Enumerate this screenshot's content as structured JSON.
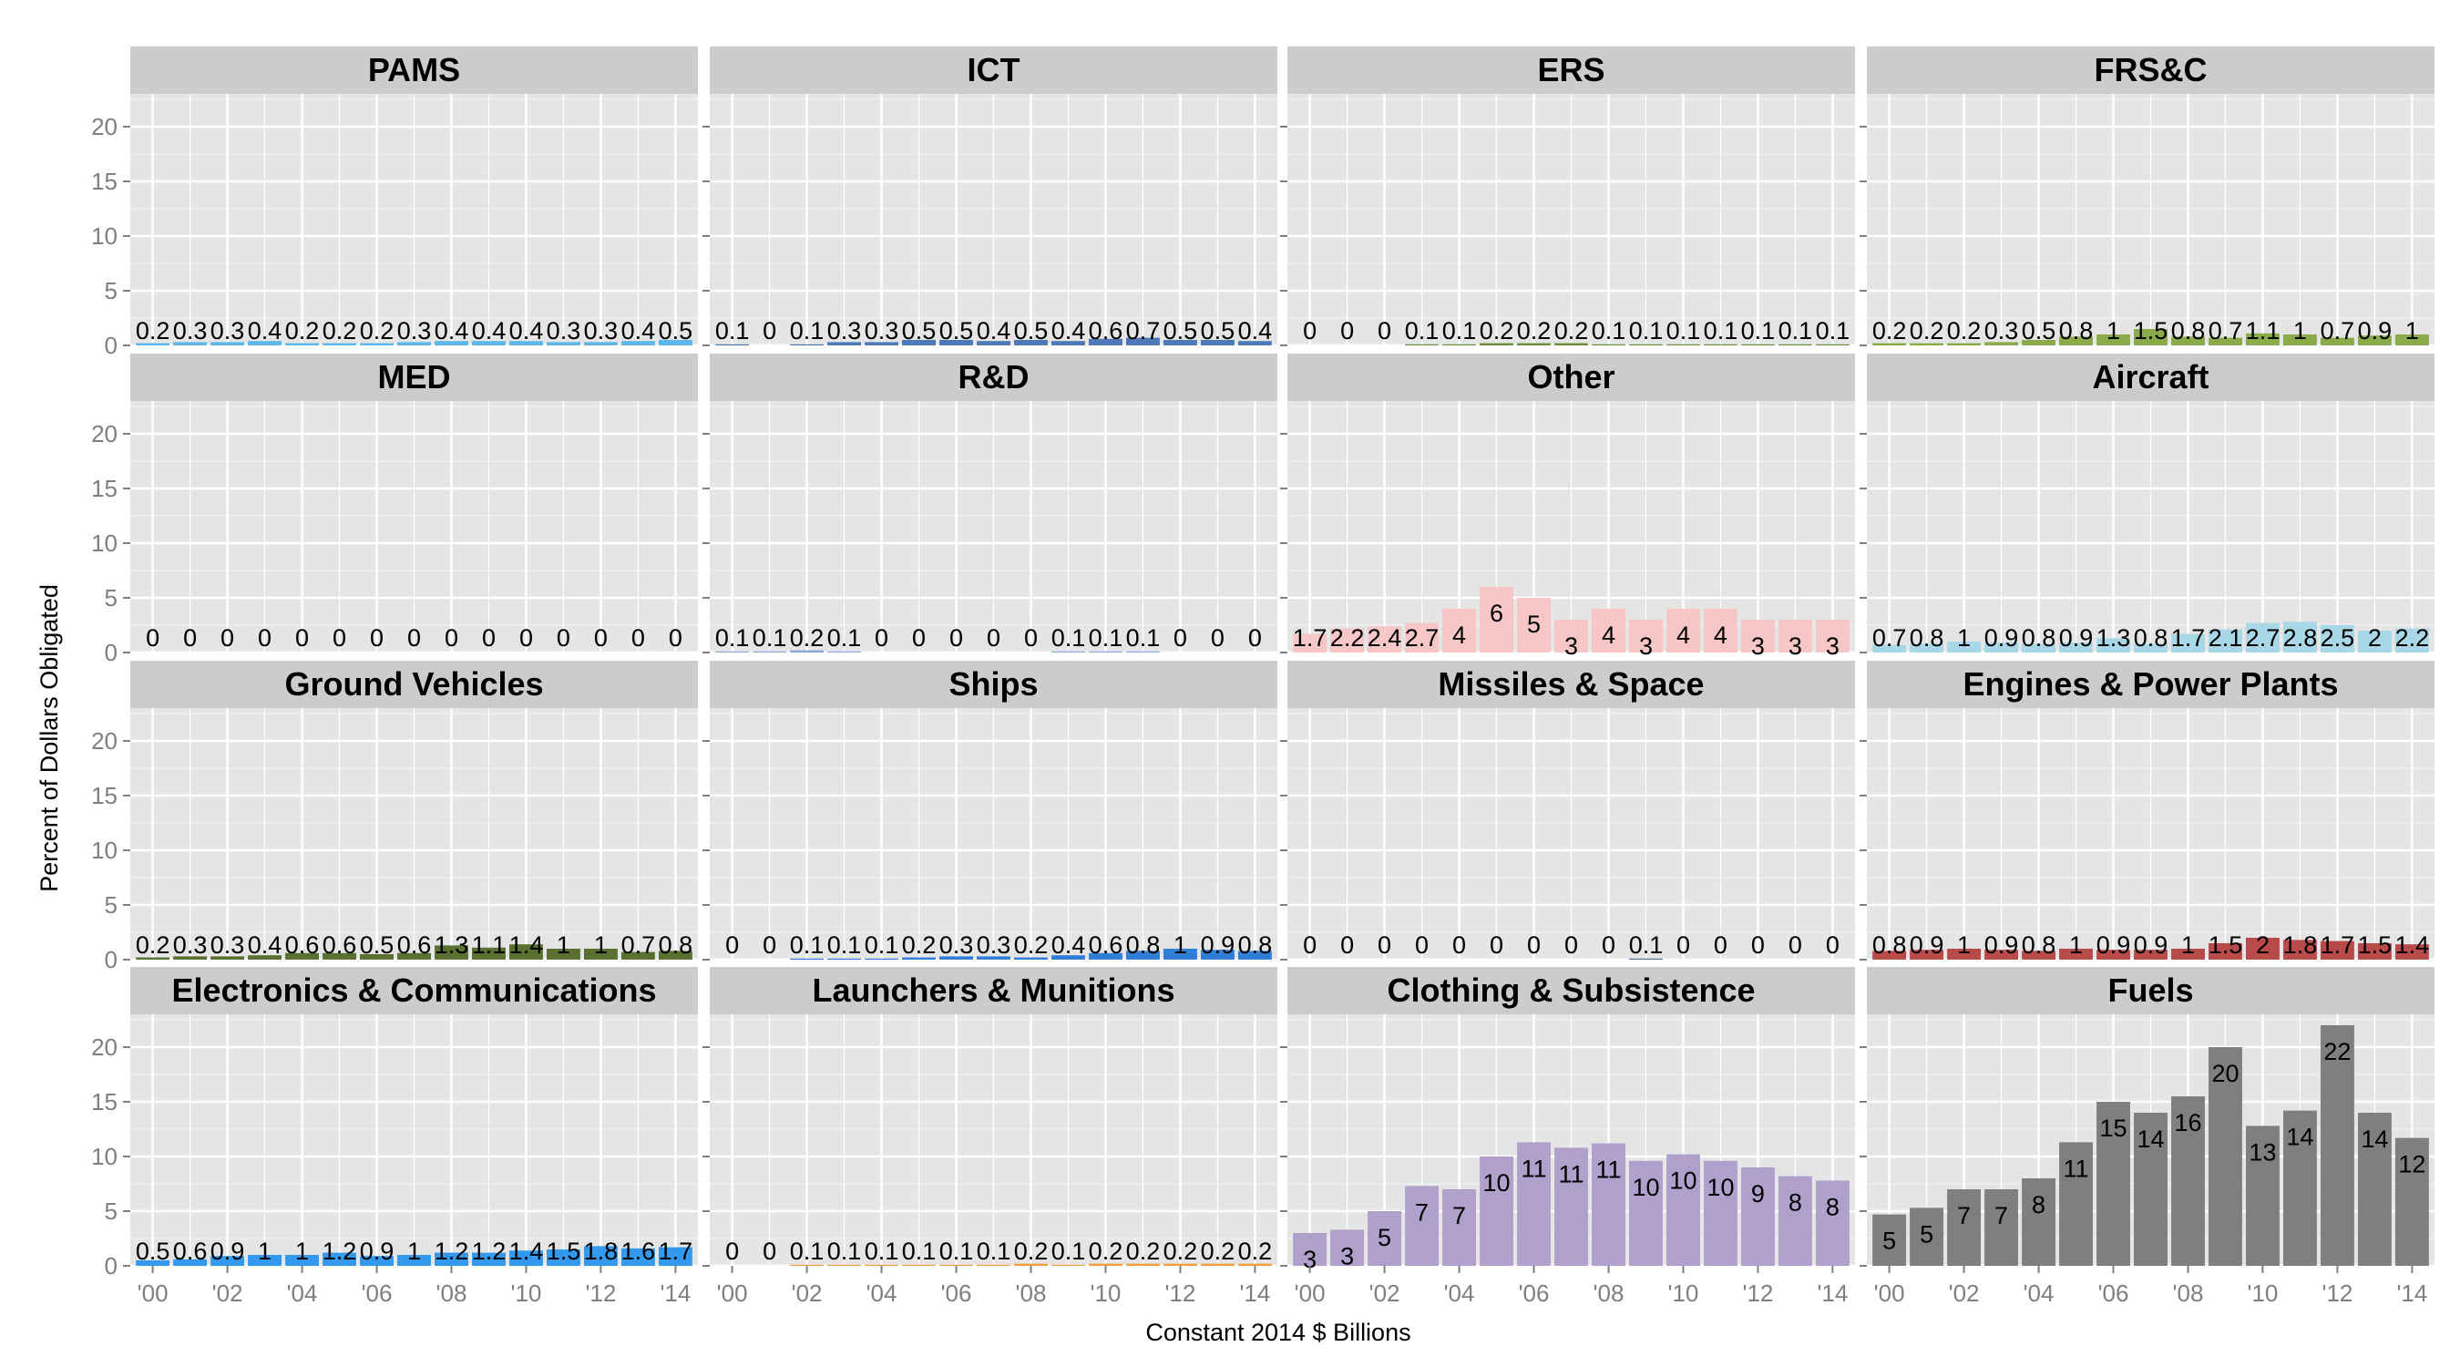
{
  "chart_data": {
    "type": "bar",
    "xlabel": "Constant 2014 $ Billions",
    "ylabel": "Percent of Dollars Obligated",
    "ylim": [
      0,
      23
    ],
    "yticks": [
      0,
      5,
      10,
      15,
      20
    ],
    "x": [
      "2000",
      "2001",
      "2002",
      "2003",
      "2004",
      "2005",
      "2006",
      "2007",
      "2008",
      "2009",
      "2010",
      "2011",
      "2012",
      "2013",
      "2014"
    ],
    "xtick_labels": [
      "'00",
      "'02",
      "'04",
      "'06",
      "'08",
      "'10",
      "'12",
      "'14"
    ],
    "grid": true,
    "legend": "none",
    "panels": [
      {
        "title": "PAMS",
        "color": "#5bb8e8",
        "values": [
          0.2,
          0.3,
          0.3,
          0.4,
          0.2,
          0.2,
          0.2,
          0.3,
          0.4,
          0.4,
          0.4,
          0.3,
          0.3,
          0.4,
          0.5
        ],
        "labels": [
          "0.2",
          "0.3",
          "0.3",
          "0.4",
          "0.2",
          "0.2",
          "0.2",
          "0.3",
          "0.4",
          "0.4",
          "0.4",
          "0.3",
          "0.3",
          "0.4",
          "0.5"
        ]
      },
      {
        "title": "ICT",
        "color": "#4f79b6",
        "values": [
          0.1,
          0,
          0.1,
          0.3,
          0.3,
          0.5,
          0.5,
          0.4,
          0.5,
          0.4,
          0.6,
          0.7,
          0.5,
          0.5,
          0.4
        ],
        "labels": [
          "0.1",
          "0",
          "0.1",
          "0.3",
          "0.3",
          "0.5",
          "0.5",
          "0.4",
          "0.5",
          "0.4",
          "0.6",
          "0.7",
          "0.5",
          "0.5",
          "0.4"
        ]
      },
      {
        "title": "ERS",
        "color": "#6b8e3a",
        "values": [
          0,
          0,
          0,
          0.1,
          0.1,
          0.2,
          0.2,
          0.2,
          0.1,
          0.1,
          0.1,
          0.1,
          0.1,
          0.1,
          0.1
        ],
        "labels": [
          "0",
          "0",
          "0",
          "0.1",
          "0.1",
          "0.2",
          "0.2",
          "0.2",
          "0.1",
          "0.1",
          "0.1",
          "0.1",
          "0.1",
          "0.1",
          "0.1"
        ]
      },
      {
        "title": "FRS&C",
        "color": "#8aab4a",
        "values": [
          0.2,
          0.2,
          0.2,
          0.3,
          0.5,
          0.8,
          1,
          1.5,
          0.8,
          0.7,
          1.1,
          1,
          0.7,
          0.9,
          1
        ],
        "labels": [
          "0.2",
          "0.2",
          "0.2",
          "0.3",
          "0.5",
          "0.8",
          "1",
          "1.5",
          "0.8",
          "0.7",
          "1.1",
          "1",
          "0.7",
          "0.9",
          "1"
        ]
      },
      {
        "title": "MED",
        "color": "#e88b8b",
        "values": [
          0,
          0,
          0,
          0,
          0,
          0,
          0,
          0,
          0,
          0,
          0,
          0,
          0,
          0,
          0
        ],
        "labels": [
          "0",
          "0",
          "0",
          "0",
          "0",
          "0",
          "0",
          "0",
          "0",
          "0",
          "0",
          "0",
          "0",
          "0",
          "0"
        ]
      },
      {
        "title": "R&D",
        "color": "#8aa8d8",
        "values": [
          0.1,
          0.1,
          0.2,
          0.1,
          0,
          0,
          0,
          0,
          0,
          0.1,
          0.1,
          0.1,
          0,
          0,
          0
        ],
        "labels": [
          "0.1",
          "0.1",
          "0.2",
          "0.1",
          "0",
          "0",
          "0",
          "0",
          "0",
          "0.1",
          "0.1",
          "0.1",
          "0",
          "0",
          "0"
        ]
      },
      {
        "title": "Other",
        "color": "#f7c6c6",
        "values": [
          1.7,
          2.2,
          2.4,
          2.7,
          4,
          6,
          5,
          3,
          4,
          3,
          4,
          4,
          3,
          3,
          3
        ],
        "labels": [
          "1.7",
          "2.2",
          "2.4",
          "2.7",
          "4",
          "6",
          "5",
          "3",
          "4",
          "3",
          "4",
          "4",
          "3",
          "3",
          "3"
        ]
      },
      {
        "title": "Aircraft",
        "color": "#a8d8e8",
        "values": [
          0.7,
          0.8,
          1,
          0.9,
          0.8,
          0.9,
          1.3,
          0.8,
          1.7,
          2.1,
          2.7,
          2.8,
          2.5,
          2,
          2.2
        ],
        "labels": [
          "0.7",
          "0.8",
          "1",
          "0.9",
          "0.8",
          "0.9",
          "1.3",
          "0.8",
          "1.7",
          "2.1",
          "2.7",
          "2.8",
          "2.5",
          "2",
          "2.2"
        ]
      },
      {
        "title": "Ground Vehicles",
        "color": "#5a7030",
        "values": [
          0.2,
          0.3,
          0.3,
          0.4,
          0.6,
          0.6,
          0.5,
          0.6,
          1.3,
          1.1,
          1.4,
          1,
          1,
          0.7,
          0.8
        ],
        "labels": [
          "0.2",
          "0.3",
          "0.3",
          "0.4",
          "0.6",
          "0.6",
          "0.5",
          "0.6",
          "1.3",
          "1.1",
          "1.4",
          "1",
          "1",
          "0.7",
          "0.8"
        ]
      },
      {
        "title": "Ships",
        "color": "#2f7ed8",
        "values": [
          0,
          0,
          0.1,
          0.1,
          0.1,
          0.2,
          0.3,
          0.3,
          0.2,
          0.4,
          0.6,
          0.8,
          1,
          0.9,
          0.8
        ],
        "labels": [
          "0",
          "0",
          "0.1",
          "0.1",
          "0.1",
          "0.2",
          "0.3",
          "0.3",
          "0.2",
          "0.4",
          "0.6",
          "0.8",
          "1",
          "0.9",
          "0.8"
        ]
      },
      {
        "title": "Missiles & Space",
        "color": "#5f6f8f",
        "values": [
          0,
          0,
          0,
          0,
          0,
          0,
          0,
          0,
          0,
          0.1,
          0,
          0,
          0,
          0,
          0
        ],
        "labels": [
          "0",
          "0",
          "0",
          "0",
          "0",
          "0",
          "0",
          "0",
          "0",
          "0.1",
          "0",
          "0",
          "0",
          "0",
          "0"
        ]
      },
      {
        "title": "Engines & Power Plants",
        "color": "#b84a4a",
        "values": [
          0.8,
          0.9,
          1,
          0.9,
          0.8,
          1,
          0.9,
          0.9,
          1,
          1.5,
          2,
          1.8,
          1.7,
          1.5,
          1.4
        ],
        "labels": [
          "0.8",
          "0.9",
          "1",
          "0.9",
          "0.8",
          "1",
          "0.9",
          "0.9",
          "1",
          "1.5",
          "2",
          "1.8",
          "1.7",
          "1.5",
          "1.4"
        ]
      },
      {
        "title": "Electronics & Communications",
        "color": "#3399ee",
        "values": [
          0.5,
          0.6,
          0.9,
          1,
          1,
          1.2,
          0.9,
          1,
          1.2,
          1.2,
          1.4,
          1.5,
          1.8,
          1.6,
          1.7
        ],
        "labels": [
          "0.5",
          "0.6",
          "0.9",
          "1",
          "1",
          "1.2",
          "0.9",
          "1",
          "1.2",
          "1.2",
          "1.4",
          "1.5",
          "1.8",
          "1.6",
          "1.7"
        ]
      },
      {
        "title": "Launchers & Munitions",
        "color": "#f0a040",
        "values": [
          0,
          0,
          0.1,
          0.1,
          0.1,
          0.1,
          0.1,
          0.1,
          0.2,
          0.1,
          0.2,
          0.2,
          0.2,
          0.2,
          0.2
        ],
        "labels": [
          "0",
          "0",
          "0.1",
          "0.1",
          "0.1",
          "0.1",
          "0.1",
          "0.1",
          "0.2",
          "0.1",
          "0.2",
          "0.2",
          "0.2",
          "0.2",
          "0.2"
        ]
      },
      {
        "title": "Clothing & Subsistence",
        "color": "#b0a0cc",
        "values": [
          3,
          3.3,
          5,
          7.3,
          7,
          10,
          11.3,
          10.8,
          11.2,
          9.6,
          10.2,
          9.6,
          9,
          8.2,
          7.8
        ],
        "labels": [
          "3",
          "3",
          "5",
          "7",
          "7",
          "10",
          "11",
          "11",
          "11",
          "10",
          "10",
          "10",
          "9",
          "8",
          "8"
        ]
      },
      {
        "title": "Fuels",
        "color": "#7f7f7f",
        "values": [
          4.7,
          5.3,
          7,
          7,
          8,
          11.3,
          15,
          14,
          15.5,
          20,
          12.8,
          14.2,
          22,
          14,
          11.7
        ],
        "labels": [
          "5",
          "5",
          "7",
          "7",
          "8",
          "11",
          "15",
          "14",
          "16",
          "20",
          "13",
          "14",
          "22",
          "14",
          "12"
        ]
      }
    ]
  }
}
